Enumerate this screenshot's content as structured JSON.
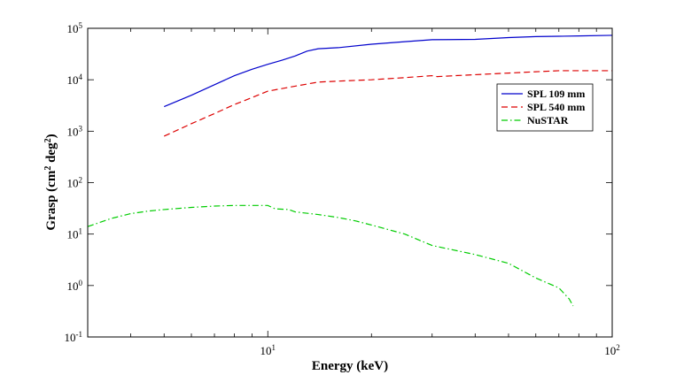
{
  "chart_data": {
    "type": "line",
    "xlabel": "Energy (keV)",
    "ylabel_parts": [
      "Grasp (cm",
      "2",
      " deg",
      "2",
      ")"
    ],
    "x_scale": "log",
    "y_scale": "log",
    "xlim": [
      3.0,
      100
    ],
    "ylim": [
      0.1,
      100000
    ],
    "x_ticks": [
      {
        "value": 10,
        "base": "10",
        "exp": "1"
      },
      {
        "value": 100,
        "base": "10",
        "exp": "2"
      }
    ],
    "y_ticks": [
      {
        "value": 0.1,
        "base": "10",
        "exp": "-1"
      },
      {
        "value": 1,
        "base": "10",
        "exp": "0"
      },
      {
        "value": 10,
        "base": "10",
        "exp": "1"
      },
      {
        "value": 100,
        "base": "10",
        "exp": "2"
      },
      {
        "value": 1000,
        "base": "10",
        "exp": "3"
      },
      {
        "value": 10000,
        "base": "10",
        "exp": "4"
      },
      {
        "value": 100000,
        "base": "10",
        "exp": "5"
      }
    ],
    "legend_position": "upper-right",
    "series": [
      {
        "name": "SPL 109 mm",
        "color": "#0000cc",
        "style": "solid",
        "points": [
          [
            5,
            3000
          ],
          [
            6,
            5000
          ],
          [
            7,
            8000
          ],
          [
            8,
            12000
          ],
          [
            9,
            16000
          ],
          [
            10,
            20000
          ],
          [
            11,
            24000
          ],
          [
            12,
            29000
          ],
          [
            13,
            36000
          ],
          [
            14,
            40000
          ],
          [
            16,
            42000
          ],
          [
            20,
            49000
          ],
          [
            25,
            55000
          ],
          [
            30,
            60000
          ],
          [
            40,
            61000
          ],
          [
            50,
            66000
          ],
          [
            60,
            69000
          ],
          [
            70,
            70000
          ],
          [
            80,
            71000
          ],
          [
            100,
            73000
          ]
        ]
      },
      {
        "name": "SPL 540 mm",
        "color": "#dd0000",
        "style": "dashed",
        "points": [
          [
            5,
            800
          ],
          [
            6,
            1400
          ],
          [
            7,
            2200
          ],
          [
            8,
            3300
          ],
          [
            9,
            4500
          ],
          [
            10,
            6000
          ],
          [
            12,
            7500
          ],
          [
            14,
            9000
          ],
          [
            16,
            9400
          ],
          [
            20,
            10000
          ],
          [
            25,
            11000
          ],
          [
            30,
            12000
          ],
          [
            31,
            11500
          ],
          [
            35,
            12000
          ],
          [
            50,
            13500
          ],
          [
            70,
            15000
          ],
          [
            100,
            15000
          ]
        ]
      },
      {
        "name": "NuSTAR",
        "color": "#00cc00",
        "style": "dashdot",
        "points": [
          [
            3,
            14
          ],
          [
            3.5,
            20
          ],
          [
            4,
            25
          ],
          [
            4.5,
            28
          ],
          [
            5,
            30
          ],
          [
            6,
            33
          ],
          [
            7,
            35
          ],
          [
            8,
            36
          ],
          [
            9,
            36
          ],
          [
            10,
            36
          ],
          [
            10.5,
            31
          ],
          [
            11.5,
            30
          ],
          [
            12,
            27
          ],
          [
            14,
            24
          ],
          [
            16,
            21
          ],
          [
            18,
            18
          ],
          [
            20,
            15
          ],
          [
            25,
            10
          ],
          [
            30,
            6
          ],
          [
            40,
            4
          ],
          [
            50,
            2.7
          ],
          [
            60,
            1.4
          ],
          [
            70,
            0.9
          ],
          [
            75,
            0.55
          ],
          [
            77,
            0.4
          ]
        ]
      }
    ]
  }
}
